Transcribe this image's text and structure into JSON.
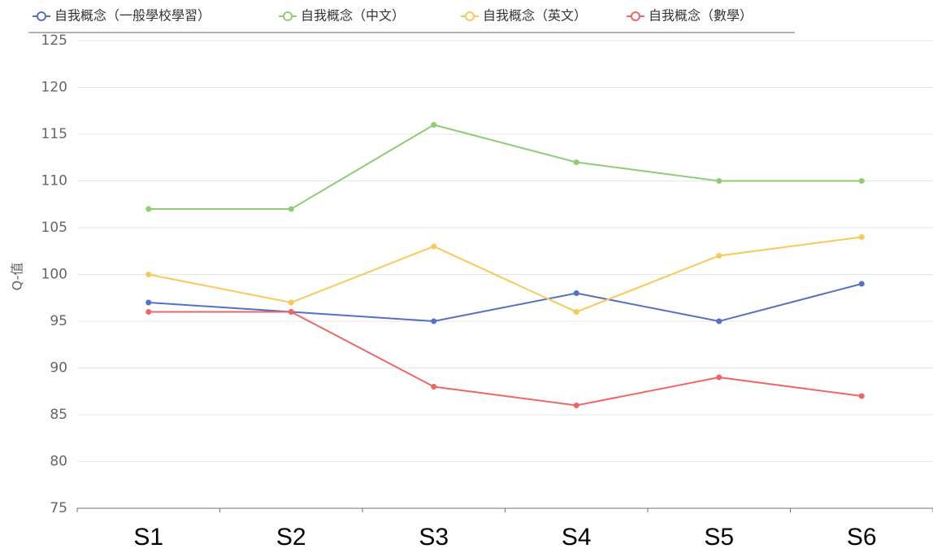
{
  "chart_data": {
    "type": "line",
    "y_label": "Q-值",
    "categories": [
      "S1",
      "S2",
      "S3",
      "S4",
      "S5",
      "S6"
    ],
    "series": [
      {
        "name": "自我概念（一般學校學習）",
        "color": "#5470c6",
        "values": [
          97,
          96,
          95,
          98,
          95,
          99
        ]
      },
      {
        "name": "自我概念（中文）",
        "color": "#91cc75",
        "values": [
          107,
          107,
          116,
          112,
          110,
          110
        ]
      },
      {
        "name": "自我概念（英文）",
        "color": "#fac858",
        "values": [
          100,
          97,
          103,
          96,
          102,
          104
        ]
      },
      {
        "name": "自我概念（數學）",
        "color": "#ee6666",
        "values": [
          96,
          96,
          88,
          86,
          89,
          87
        ]
      }
    ],
    "ylim": [
      75,
      125
    ],
    "yticks": [
      75,
      80,
      85,
      90,
      95,
      100,
      105,
      110,
      115,
      120,
      125
    ],
    "grid": true,
    "legend": "top"
  }
}
